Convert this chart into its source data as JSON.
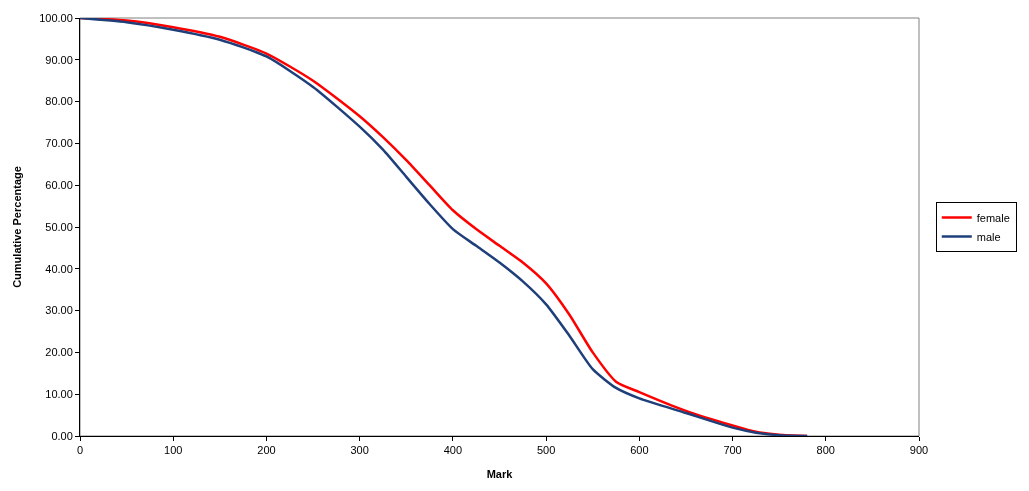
{
  "chart_data": {
    "type": "line",
    "xlabel": "Mark",
    "ylabel": "Cumulative Percentage",
    "xlim": [
      0,
      900
    ],
    "xticks": [
      0,
      100,
      200,
      300,
      400,
      500,
      600,
      700,
      800,
      900
    ],
    "ylim": [
      0,
      100
    ],
    "yticks": [
      {
        "value": 0,
        "label": "0.00"
      },
      {
        "value": 10,
        "label": "10.00"
      },
      {
        "value": 20,
        "label": "20.00"
      },
      {
        "value": 30,
        "label": "30.00"
      },
      {
        "value": 40,
        "label": "40.00"
      },
      {
        "value": 50,
        "label": "50.00"
      },
      {
        "value": 60,
        "label": "60.00"
      },
      {
        "value": 70,
        "label": "70.00"
      },
      {
        "value": 80,
        "label": "80.00"
      },
      {
        "value": 90,
        "label": "90.00"
      },
      {
        "value": 100,
        "label": "100.00"
      }
    ],
    "x": [
      0,
      50,
      100,
      150,
      200,
      250,
      300,
      325,
      350,
      375,
      400,
      425,
      450,
      475,
      500,
      525,
      550,
      575,
      600,
      650,
      700,
      725,
      750,
      780
    ],
    "grid": false,
    "legend": "right",
    "marker": "none",
    "line_style": "solid",
    "series": [
      {
        "name": "female",
        "color": "#ff0000",
        "values": [
          100,
          99.4,
          97.8,
          95.5,
          91.5,
          85,
          76.5,
          71.5,
          66,
          60,
          54,
          49.5,
          45.5,
          41.5,
          36.5,
          29,
          20,
          13,
          10.5,
          6,
          2.5,
          1,
          0.3,
          0
        ]
      },
      {
        "name": "male",
        "color": "#1f3f7a",
        "values": [
          100,
          99,
          97.2,
          94.8,
          90.8,
          83.5,
          74,
          68.5,
          62,
          55.5,
          49.5,
          45.5,
          41.5,
          37,
          31.5,
          24,
          16,
          11.5,
          9,
          5.5,
          2,
          0.8,
          0.2,
          0
        ]
      }
    ]
  }
}
